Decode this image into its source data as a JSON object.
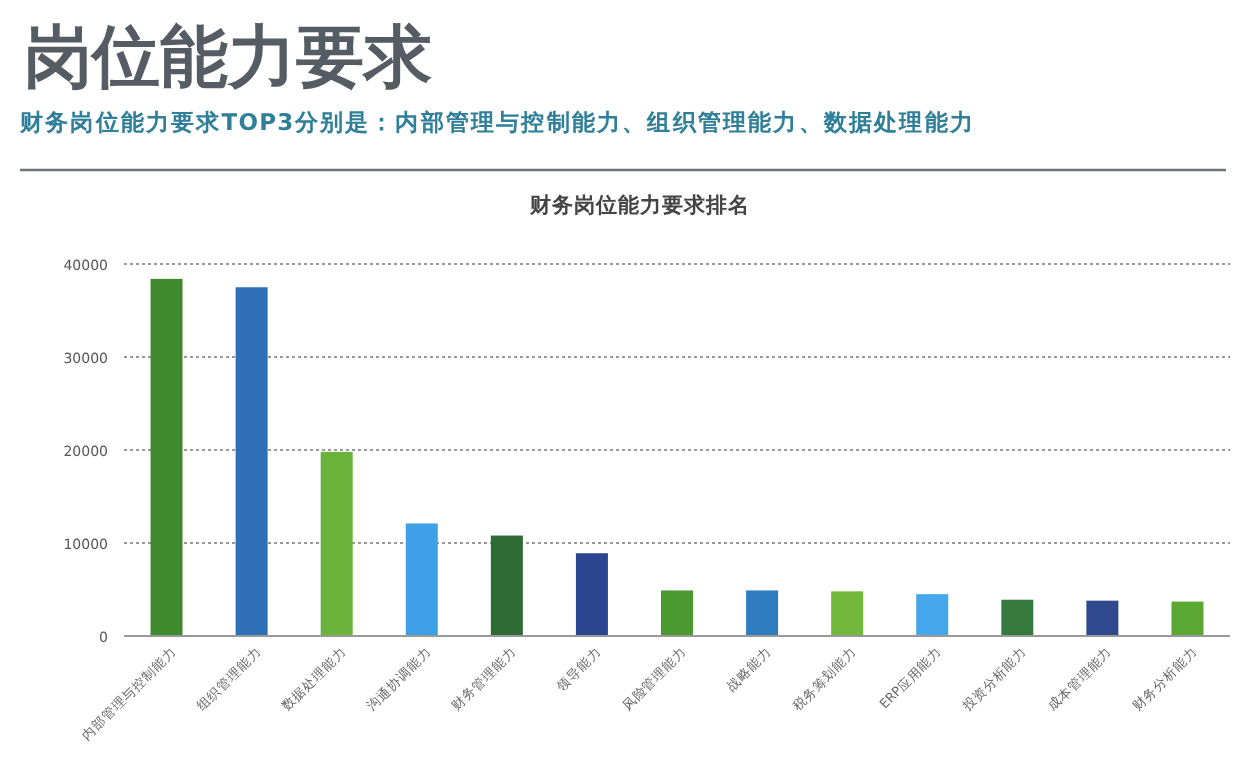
{
  "chart_data": {
    "type": "bar",
    "title": "岗位能力要求",
    "subtitle": "财务岗位能力要求TOP3分别是：内部管理与控制能力、组织管理能力、数据处理能力",
    "annotations": [
      "财务岗位能力要求排名"
    ],
    "categories": [
      "内部管理与控制能力",
      "组织管理能力",
      "数据处理能力",
      "沟通协调能力",
      "财务管理能力",
      "领导能力",
      "风险管理能力",
      "战略能力",
      "税务筹划能力",
      "ERP应用能力",
      "投资分析能力",
      "成本管理能力",
      "财务分析能力"
    ],
    "values": [
      38400,
      37500,
      19800,
      12100,
      10800,
      8900,
      4900,
      4900,
      4800,
      4500,
      3900,
      3800,
      3700
    ],
    "colors": [
      "#3f8a2e",
      "#2e6fb8",
      "#6ab33a",
      "#3ea0e6",
      "#2e6b34",
      "#2b4590",
      "#4a9a30",
      "#2f7dc0",
      "#72b83c",
      "#45a8ec",
      "#357a3c",
      "#30488e",
      "#5aa832"
    ],
    "ylim": [
      0,
      40000
    ],
    "yticks": [
      0,
      10000,
      20000,
      30000,
      40000
    ],
    "grid": "y"
  }
}
